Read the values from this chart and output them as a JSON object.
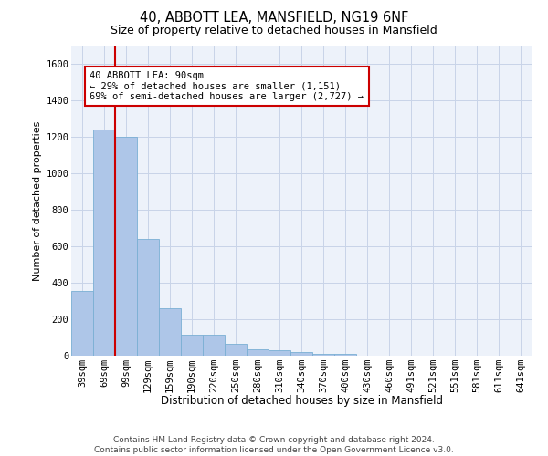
{
  "title_line1": "40, ABBOTT LEA, MANSFIELD, NG19 6NF",
  "title_line2": "Size of property relative to detached houses in Mansfield",
  "xlabel": "Distribution of detached houses by size in Mansfield",
  "ylabel": "Number of detached properties",
  "categories": [
    "39sqm",
    "69sqm",
    "99sqm",
    "129sqm",
    "159sqm",
    "190sqm",
    "220sqm",
    "250sqm",
    "280sqm",
    "310sqm",
    "340sqm",
    "370sqm",
    "400sqm",
    "430sqm",
    "460sqm",
    "491sqm",
    "521sqm",
    "551sqm",
    "581sqm",
    "611sqm",
    "641sqm"
  ],
  "values": [
    355,
    1240,
    1200,
    640,
    260,
    115,
    115,
    65,
    35,
    30,
    18,
    10,
    12,
    0,
    0,
    0,
    0,
    0,
    0,
    0,
    0
  ],
  "bar_color": "#aec6e8",
  "bar_edge_color": "#7aafd4",
  "annotation_text": "40 ABBOTT LEA: 90sqm\n← 29% of detached houses are smaller (1,151)\n69% of semi-detached houses are larger (2,727) →",
  "annotation_box_color": "#ffffff",
  "annotation_box_edge_color": "#cc0000",
  "ylim": [
    0,
    1700
  ],
  "yticks": [
    0,
    200,
    400,
    600,
    800,
    1000,
    1200,
    1400,
    1600
  ],
  "footer_text": "Contains HM Land Registry data © Crown copyright and database right 2024.\nContains public sector information licensed under the Open Government Licence v3.0.",
  "grid_color": "#c8d4e8",
  "background_color": "#edf2fa",
  "red_line_color": "#cc0000",
  "title1_fontsize": 10.5,
  "title2_fontsize": 9,
  "ylabel_fontsize": 8,
  "tick_fontsize": 7.5,
  "annotation_fontsize": 7.5,
  "footer_fontsize": 6.5
}
